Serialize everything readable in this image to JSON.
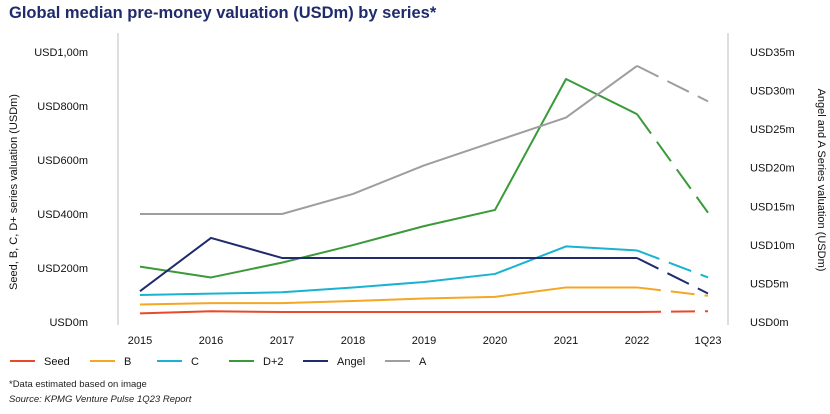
{
  "title": "Global median pre-money valuation (USDm) by series*",
  "footnote": "*Data estimated based on image",
  "source": "Source: KPMG Venture Pulse 1Q23 Report",
  "chart_data": {
    "type": "line",
    "categories": [
      "2015",
      "2016",
      "2017",
      "2018",
      "2019",
      "2020",
      "2021",
      "2022",
      "1Q23"
    ],
    "left_axis": {
      "label": "Seed, B, C, D+ series valuation (USDm)",
      "ticks": [
        "USD0m",
        "USD200m",
        "USD400m",
        "USD600m",
        "USD800m",
        "USD1,00m"
      ],
      "tick_values": [
        0,
        200,
        400,
        600,
        800,
        1000
      ],
      "ylim": [
        0,
        1000
      ]
    },
    "right_axis": {
      "label": "Angel and A Series valuation (USDm)",
      "ticks": [
        "USD0m",
        "USD5m",
        "USD10m",
        "USD15m",
        "USD20m",
        "USD25m",
        "USD30m",
        "USD35m"
      ],
      "tick_values": [
        0,
        5,
        10,
        15,
        20,
        25,
        30,
        35
      ],
      "ylim": [
        0,
        35
      ]
    },
    "grid": false,
    "legend_position": "bottom",
    "series": [
      {
        "name": "Seed",
        "axis": "left",
        "color": "#e8492a",
        "values": [
          32,
          40,
          37,
          37,
          37,
          37,
          37,
          37,
          40
        ]
      },
      {
        "name": "B",
        "axis": "left",
        "color": "#f5a623",
        "values": [
          65,
          70,
          70,
          78,
          87,
          93,
          128,
          128,
          97
        ]
      },
      {
        "name": "C",
        "axis": "left",
        "color": "#1ab2d1",
        "values": [
          100,
          105,
          110,
          128,
          148,
          178,
          280,
          265,
          165
        ]
      },
      {
        "name": "D+2",
        "axis": "left",
        "color": "#3a9a3a",
        "values": [
          205,
          165,
          220,
          285,
          355,
          415,
          900,
          770,
          405
        ]
      },
      {
        "name": "Angel",
        "axis": "right",
        "color": "#1f2b6b",
        "values": [
          4.0,
          10.9,
          8.3,
          8.3,
          8.3,
          8.3,
          8.3,
          8.3,
          3.7
        ]
      },
      {
        "name": "A",
        "axis": "right",
        "color": "#9e9e9e",
        "values": [
          14.0,
          14.0,
          14.0,
          16.6,
          20.3,
          23.4,
          26.5,
          33.2,
          28.6
        ]
      }
    ]
  }
}
